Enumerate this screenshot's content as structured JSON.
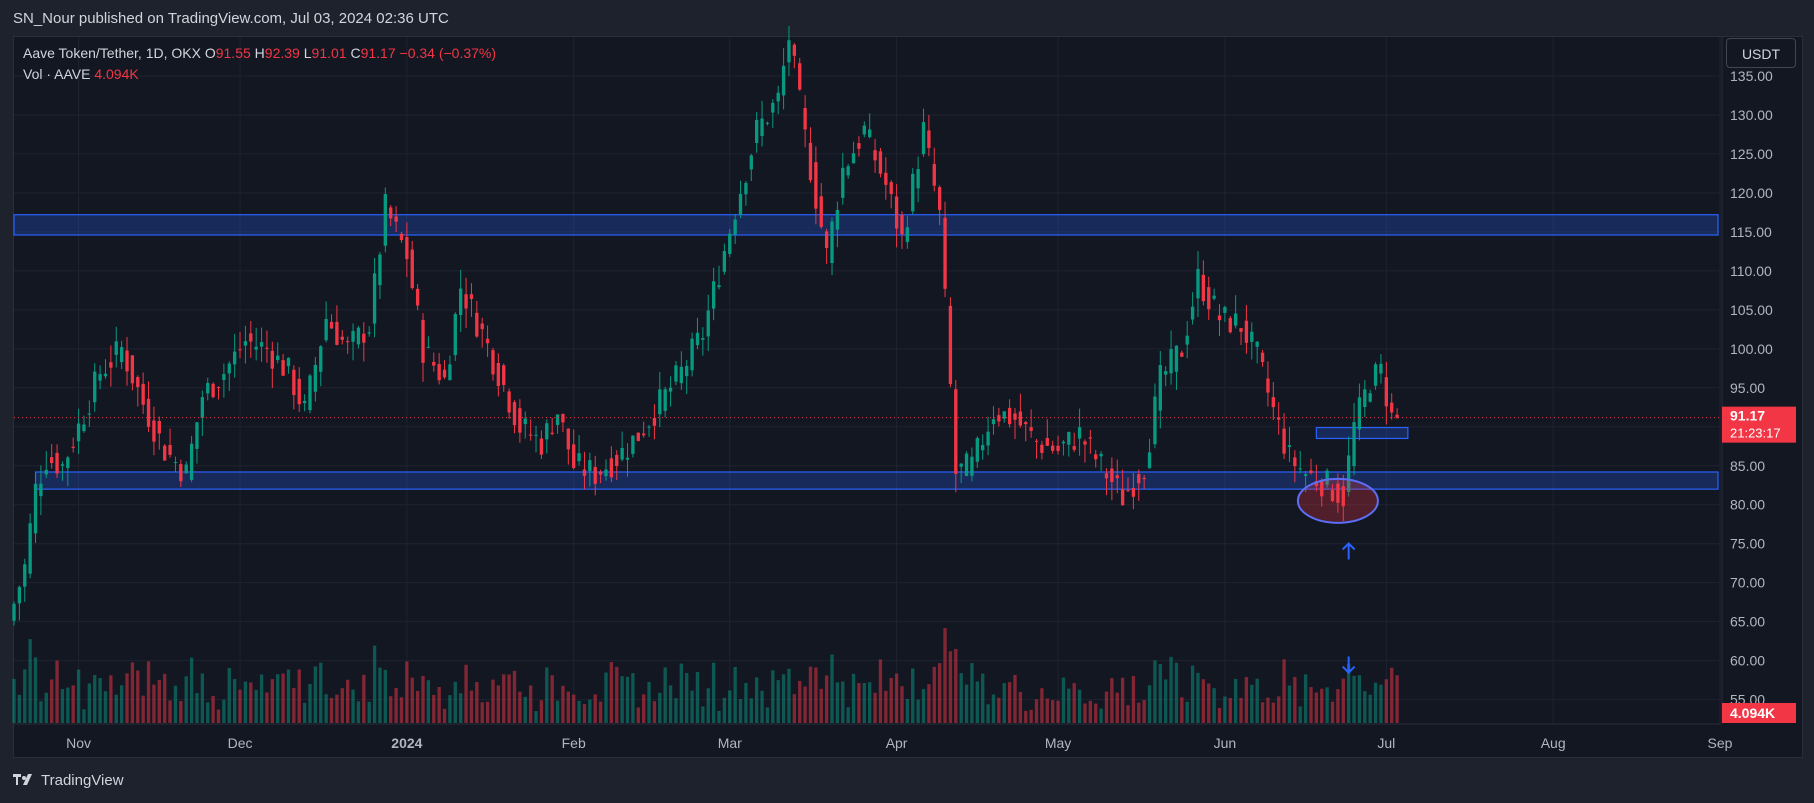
{
  "header": {
    "published": "SN_Nour published on TradingView.com, Jul 03, 2024 02:36 UTC"
  },
  "legend": {
    "symbol": "Aave Token/Tether, 1D, OKX",
    "open_label": "O",
    "open": "91.55",
    "high_label": "H",
    "high": "92.39",
    "low_label": "L",
    "low": "91.01",
    "close_label": "C",
    "close": "91.17",
    "change": "−0.34 (−0.37%)",
    "vol_label": "Vol · AAVE",
    "vol": "4.094K"
  },
  "currency_button": "USDT",
  "footer": {
    "brand": "TradingView"
  },
  "chart_data": {
    "type": "candlestick",
    "symbol": "Aave Token/Tether",
    "timeframe": "1D",
    "exchange": "OKX",
    "y_ticks": [
      "135.00",
      "130.00",
      "125.00",
      "120.00",
      "115.00",
      "110.00",
      "105.00",
      "100.00",
      "95.00",
      "90.00",
      "85.00",
      "80.00",
      "75.00",
      "70.00",
      "65.00",
      "60.00",
      "55.00"
    ],
    "y_range": [
      52,
      140
    ],
    "x_ticks": [
      {
        "label": "Nov",
        "date": "2023-11-01"
      },
      {
        "label": "Dec",
        "date": "2023-12-01"
      },
      {
        "label": "2024",
        "date": "2024-01-01",
        "bold": true
      },
      {
        "label": "Feb",
        "date": "2024-02-01"
      },
      {
        "label": "Mar",
        "date": "2024-03-01"
      },
      {
        "label": "Apr",
        "date": "2024-04-01"
      },
      {
        "label": "May",
        "date": "2024-05-01"
      },
      {
        "label": "Jun",
        "date": "2024-06-01"
      },
      {
        "label": "Jul",
        "date": "2024-07-01"
      },
      {
        "label": "Aug",
        "date": "2024-08-01"
      },
      {
        "label": "Sep",
        "date": "2024-09-01"
      }
    ],
    "x_range": [
      "2023-10-20",
      "2024-09-01"
    ],
    "last_price": "91.17",
    "countdown": "21:23:17",
    "last_volume": "4.094K",
    "close_series": [
      {
        "date": "2023-10-20",
        "close": 65
      },
      {
        "date": "2023-10-23",
        "close": 72
      },
      {
        "date": "2023-10-25",
        "close": 82
      },
      {
        "date": "2023-10-27",
        "close": 86
      },
      {
        "date": "2023-10-30",
        "close": 85
      },
      {
        "date": "2023-11-02",
        "close": 90
      },
      {
        "date": "2023-11-06",
        "close": 97
      },
      {
        "date": "2023-11-10",
        "close": 100
      },
      {
        "date": "2023-11-14",
        "close": 93
      },
      {
        "date": "2023-11-18",
        "close": 87
      },
      {
        "date": "2023-11-22",
        "close": 84
      },
      {
        "date": "2023-11-25",
        "close": 94
      },
      {
        "date": "2023-11-29",
        "close": 97
      },
      {
        "date": "2023-12-03",
        "close": 101
      },
      {
        "date": "2023-12-07",
        "close": 100
      },
      {
        "date": "2023-12-11",
        "close": 97
      },
      {
        "date": "2023-12-14",
        "close": 92
      },
      {
        "date": "2023-12-18",
        "close": 104
      },
      {
        "date": "2023-12-22",
        "close": 100
      },
      {
        "date": "2023-12-26",
        "close": 103
      },
      {
        "date": "2023-12-29",
        "close": 118
      },
      {
        "date": "2024-01-02",
        "close": 112
      },
      {
        "date": "2024-01-05",
        "close": 100
      },
      {
        "date": "2024-01-09",
        "close": 96
      },
      {
        "date": "2024-01-12",
        "close": 108
      },
      {
        "date": "2024-01-16",
        "close": 102
      },
      {
        "date": "2024-01-19",
        "close": 97
      },
      {
        "date": "2024-01-23",
        "close": 90
      },
      {
        "date": "2024-01-27",
        "close": 88
      },
      {
        "date": "2024-01-30",
        "close": 92
      },
      {
        "date": "2024-02-02",
        "close": 85
      },
      {
        "date": "2024-02-06",
        "close": 84
      },
      {
        "date": "2024-02-10",
        "close": 86
      },
      {
        "date": "2024-02-14",
        "close": 89
      },
      {
        "date": "2024-02-18",
        "close": 93
      },
      {
        "date": "2024-02-22",
        "close": 97
      },
      {
        "date": "2024-02-26",
        "close": 102
      },
      {
        "date": "2024-02-29",
        "close": 110
      },
      {
        "date": "2024-03-03",
        "close": 118
      },
      {
        "date": "2024-03-07",
        "close": 128
      },
      {
        "date": "2024-03-11",
        "close": 132
      },
      {
        "date": "2024-03-13",
        "close": 140
      },
      {
        "date": "2024-03-16",
        "close": 127
      },
      {
        "date": "2024-03-20",
        "close": 112
      },
      {
        "date": "2024-03-23",
        "close": 123
      },
      {
        "date": "2024-03-27",
        "close": 128
      },
      {
        "date": "2024-03-31",
        "close": 121
      },
      {
        "date": "2024-04-03",
        "close": 114
      },
      {
        "date": "2024-04-07",
        "close": 128
      },
      {
        "date": "2024-04-10",
        "close": 117
      },
      {
        "date": "2024-04-13",
        "close": 84
      },
      {
        "date": "2024-04-16",
        "close": 85
      },
      {
        "date": "2024-04-20",
        "close": 92
      },
      {
        "date": "2024-04-24",
        "close": 91
      },
      {
        "date": "2024-04-28",
        "close": 88
      },
      {
        "date": "2024-05-02",
        "close": 87
      },
      {
        "date": "2024-05-06",
        "close": 89
      },
      {
        "date": "2024-05-10",
        "close": 85
      },
      {
        "date": "2024-05-14",
        "close": 81
      },
      {
        "date": "2024-05-18",
        "close": 85
      },
      {
        "date": "2024-05-21",
        "close": 96
      },
      {
        "date": "2024-05-25",
        "close": 100
      },
      {
        "date": "2024-05-28",
        "close": 109
      },
      {
        "date": "2024-06-01",
        "close": 104
      },
      {
        "date": "2024-06-05",
        "close": 103
      },
      {
        "date": "2024-06-08",
        "close": 99
      },
      {
        "date": "2024-06-11",
        "close": 92
      },
      {
        "date": "2024-06-14",
        "close": 86
      },
      {
        "date": "2024-06-17",
        "close": 84
      },
      {
        "date": "2024-06-20",
        "close": 83
      },
      {
        "date": "2024-06-24",
        "close": 81
      },
      {
        "date": "2024-06-26",
        "close": 90
      },
      {
        "date": "2024-06-29",
        "close": 96
      },
      {
        "date": "2024-07-01",
        "close": 97
      },
      {
        "date": "2024-07-03",
        "close": 91.17
      }
    ],
    "zones": [
      {
        "from": 114.6,
        "to": 117.2,
        "start": "2023-10-20",
        "end": "2024-09-01",
        "color": "#2962ff"
      },
      {
        "from": 82.0,
        "to": 84.2,
        "start": "2023-10-24",
        "end": "2024-09-01",
        "color": "#2962ff"
      },
      {
        "from": 88.5,
        "to": 89.9,
        "start": "2024-06-18",
        "end": "2024-07-05",
        "color": "#2962ff"
      }
    ],
    "highlight_ellipse": {
      "date": "2024-06-22",
      "price": 80.5
    },
    "arrows": [
      {
        "direction": "up",
        "date": "2024-06-24",
        "price": 74
      },
      {
        "direction": "down",
        "date": "2024-06-24",
        "price": 59.5
      }
    ],
    "colors": {
      "up": "#089981",
      "down": "#f23645",
      "zone": "#2962ff",
      "background": "#131722"
    }
  }
}
